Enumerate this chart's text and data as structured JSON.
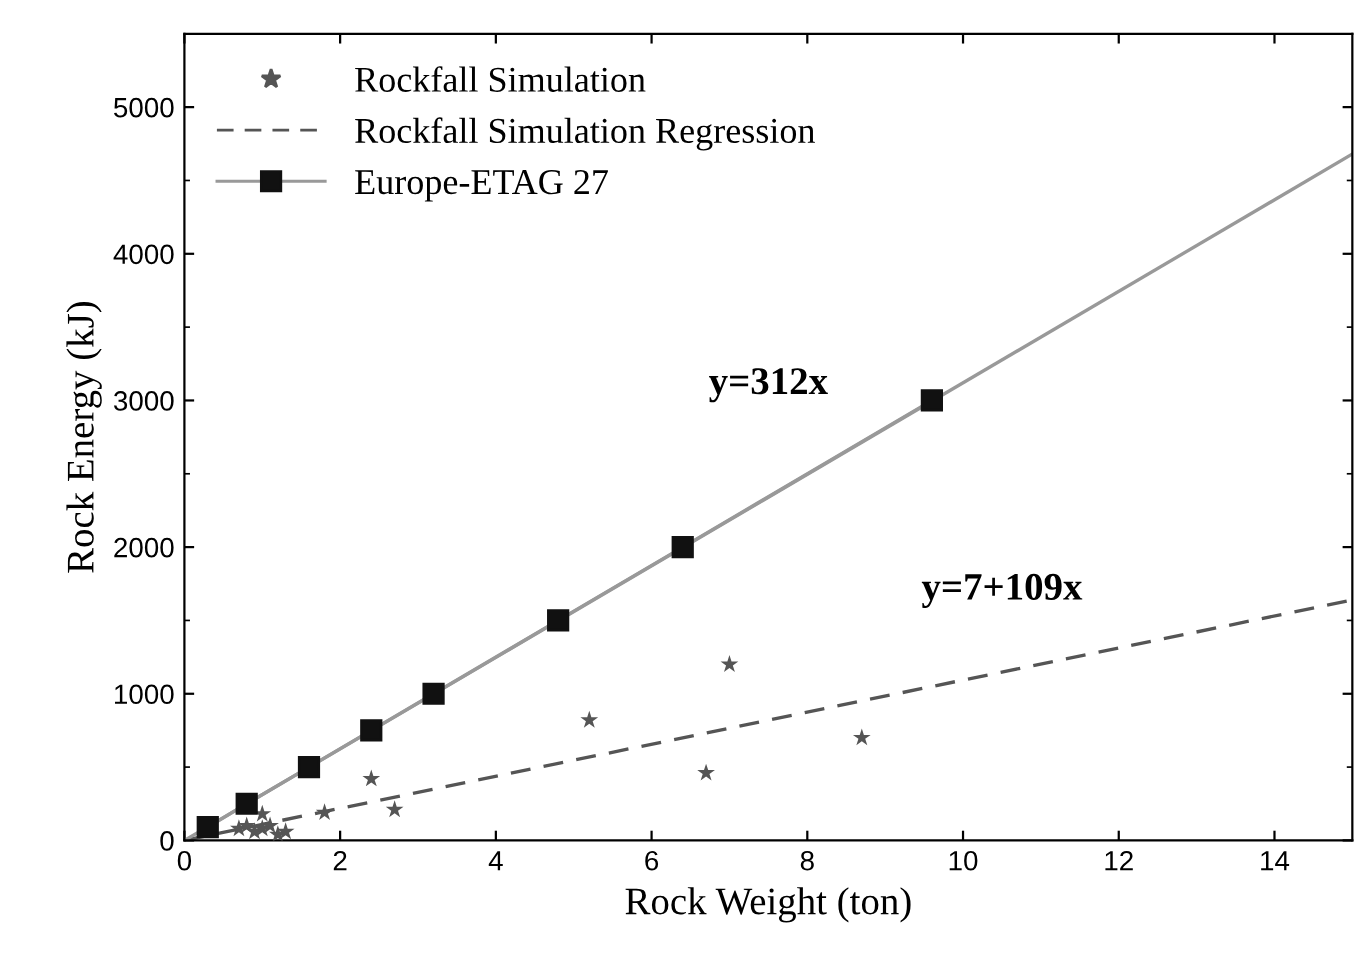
{
  "chart_data": {
    "type": "scatter",
    "xlabel": "Rock Weight (ton)",
    "ylabel": "Rock Energy (kJ)",
    "xlim": [
      0,
      15
    ],
    "ylim": [
      0,
      5500
    ],
    "xticks": [
      0,
      2,
      4,
      6,
      8,
      10,
      12,
      14
    ],
    "yticks": [
      0,
      1000,
      2000,
      3000,
      4000,
      5000
    ],
    "grid": false,
    "legend": "top left",
    "annotations": [
      "y=312x",
      "y=7+109x"
    ],
    "series": [
      {
        "name": "Rockfall Simulation",
        "marker": "star",
        "color": "#555555",
        "x": [
          0.7,
          0.8,
          0.9,
          1.0,
          1.0,
          1.1,
          1.2,
          1.3,
          1.8,
          2.4,
          2.7,
          5.2,
          6.7,
          7.0,
          8.7
        ],
        "values": [
          80,
          100,
          60,
          180,
          80,
          100,
          40,
          60,
          190,
          420,
          210,
          820,
          460,
          1200,
          700
        ]
      },
      {
        "name": "Rockfall Simulation Regression",
        "type": "line",
        "marker": "none",
        "line_style": "dashed",
        "color": "#555555",
        "x": [
          0,
          15
        ],
        "values": [
          0,
          1640
        ]
      },
      {
        "name": "Europe-ETAG 27",
        "type": "line",
        "marker": "square",
        "line_style": "solid",
        "color": "#111111",
        "x": [
          0.3,
          0.8,
          1.6,
          2.4,
          3.2,
          4.8,
          6.4,
          9.6
        ],
        "values": [
          90,
          250,
          500,
          750,
          1000,
          1500,
          2000,
          3000
        ]
      },
      {
        "type": "line",
        "marker": "none",
        "line_style": "solid",
        "color": "#999999",
        "x": [
          0,
          15
        ],
        "values": [
          0,
          4680
        ]
      }
    ]
  }
}
